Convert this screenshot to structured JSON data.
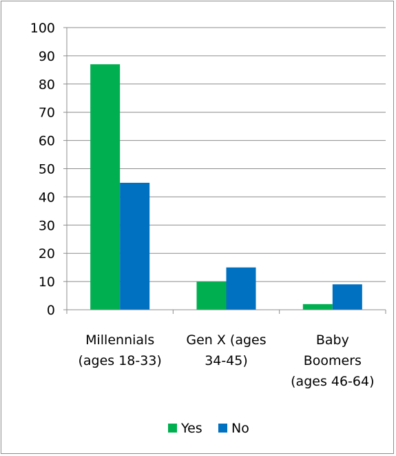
{
  "chart_data": {
    "type": "bar",
    "title": "",
    "xlabel": "",
    "ylabel": "",
    "categories": [
      [
        "Millennials",
        "(ages 18-33)"
      ],
      [
        "Gen X (ages",
        "34-45)"
      ],
      [
        "Baby",
        "Boomers",
        "(ages 46-64)"
      ]
    ],
    "series": [
      {
        "name": "Yes",
        "color": "#00b050",
        "values": [
          87,
          10,
          2
        ]
      },
      {
        "name": "No",
        "color": "#0070c0",
        "values": [
          45,
          15,
          9
        ]
      }
    ],
    "ylim": [
      0,
      100
    ],
    "yticks": [
      0,
      10,
      20,
      30,
      40,
      50,
      60,
      70,
      80,
      90,
      100
    ],
    "grid": true,
    "legend_position": "bottom"
  }
}
